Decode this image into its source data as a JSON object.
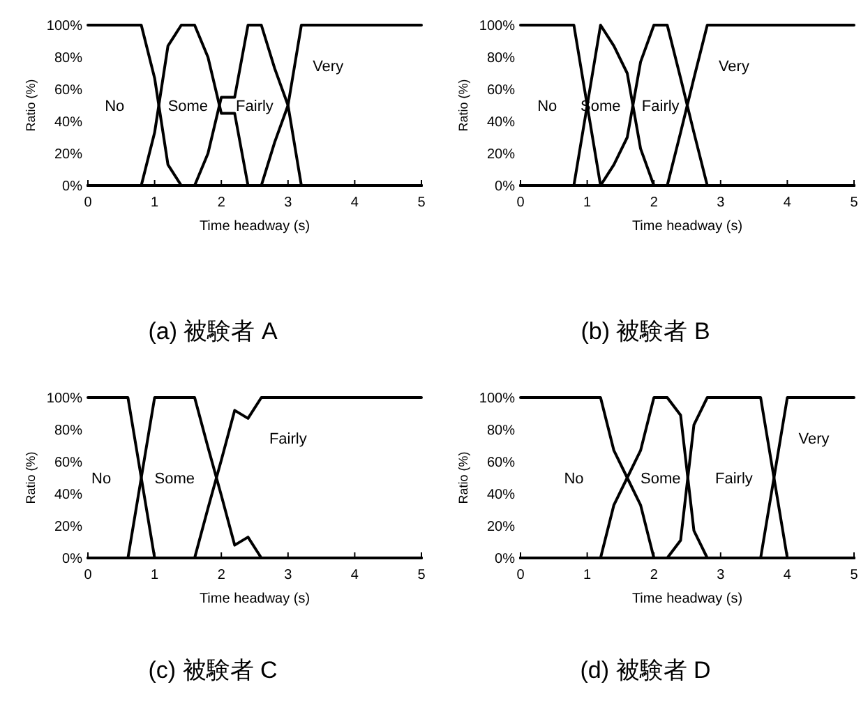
{
  "chart_data": [
    {
      "type": "line",
      "title": "(a) 被験者 A",
      "xlabel": "Time headway (s)",
      "ylabel": "Ratio (%)",
      "xlim": [
        0,
        5
      ],
      "xticks": [
        0,
        1,
        2,
        3,
        4,
        5
      ],
      "ylim": [
        0,
        100
      ],
      "yticks": [
        {
          "value": 0,
          "label": "0%"
        },
        {
          "value": 20,
          "label": "20%"
        },
        {
          "value": 40,
          "label": "40%"
        },
        {
          "value": 60,
          "label": "60%"
        },
        {
          "value": 80,
          "label": "80%"
        },
        {
          "value": 100,
          "label": "100%"
        }
      ],
      "x": [
        0,
        0.2,
        0.4,
        0.6,
        0.8,
        1.0,
        1.2,
        1.4,
        1.6,
        1.8,
        2.0,
        2.2,
        2.4,
        2.6,
        2.8,
        3.0,
        3.2,
        3.4,
        3.6,
        3.8,
        4.0,
        4.2,
        4.4,
        4.6,
        4.8,
        5.0
      ],
      "series": [
        {
          "name": "No",
          "color": "#000000",
          "values": [
            100,
            100,
            100,
            100,
            100,
            67,
            13,
            0,
            0,
            0,
            0,
            0,
            0,
            0,
            0,
            0,
            0,
            0,
            0,
            0,
            0,
            0,
            0,
            0,
            0,
            0
          ]
        },
        {
          "name": "Some",
          "color": "#000000",
          "values": [
            0,
            0,
            0,
            0,
            0,
            33,
            87,
            100,
            100,
            80,
            45,
            45,
            0,
            0,
            0,
            0,
            0,
            0,
            0,
            0,
            0,
            0,
            0,
            0,
            0,
            0
          ]
        },
        {
          "name": "Fairly",
          "color": "#000000",
          "values": [
            0,
            0,
            0,
            0,
            0,
            0,
            0,
            0,
            0,
            20,
            55,
            55,
            100,
            100,
            73,
            50,
            0,
            0,
            0,
            0,
            0,
            0,
            0,
            0,
            0,
            0
          ]
        },
        {
          "name": "Very",
          "color": "#000000",
          "values": [
            0,
            0,
            0,
            0,
            0,
            0,
            0,
            0,
            0,
            0,
            0,
            0,
            0,
            0,
            27,
            50,
            100,
            100,
            100,
            100,
            100,
            100,
            100,
            100,
            100,
            100
          ]
        }
      ]
    },
    {
      "type": "line",
      "title": "(b) 被験者 B",
      "xlabel": "Time headway (s)",
      "ylabel": "Ratio (%)",
      "xlim": [
        0,
        5
      ],
      "xticks": [
        0,
        1,
        2,
        3,
        4,
        5
      ],
      "ylim": [
        0,
        100
      ],
      "yticks": [
        {
          "value": 0,
          "label": "0%"
        },
        {
          "value": 20,
          "label": "20%"
        },
        {
          "value": 40,
          "label": "40%"
        },
        {
          "value": 60,
          "label": "60%"
        },
        {
          "value": 80,
          "label": "80%"
        },
        {
          "value": 100,
          "label": "100%"
        }
      ],
      "x": [
        0,
        0.2,
        0.4,
        0.6,
        0.8,
        1.0,
        1.2,
        1.4,
        1.6,
        1.8,
        2.0,
        2.2,
        2.4,
        2.6,
        2.8,
        3.0,
        3.2,
        3.4,
        3.6,
        3.8,
        4.0,
        4.2,
        4.4,
        4.6,
        4.8,
        5.0
      ],
      "series": [
        {
          "name": "No",
          "color": "#000000",
          "values": [
            100,
            100,
            100,
            100,
            100,
            50,
            0,
            0,
            0,
            0,
            0,
            0,
            0,
            0,
            0,
            0,
            0,
            0,
            0,
            0,
            0,
            0,
            0,
            0,
            0,
            0
          ]
        },
        {
          "name": "Some",
          "color": "#000000",
          "values": [
            0,
            0,
            0,
            0,
            0,
            50,
            100,
            87,
            70,
            23,
            0,
            0,
            0,
            0,
            0,
            0,
            0,
            0,
            0,
            0,
            0,
            0,
            0,
            0,
            0,
            0
          ]
        },
        {
          "name": "Fairly",
          "color": "#000000",
          "values": [
            0,
            0,
            0,
            0,
            0,
            0,
            0,
            13,
            30,
            77,
            100,
            100,
            67,
            33,
            0,
            0,
            0,
            0,
            0,
            0,
            0,
            0,
            0,
            0,
            0,
            0
          ]
        },
        {
          "name": "Very",
          "color": "#000000",
          "values": [
            0,
            0,
            0,
            0,
            0,
            0,
            0,
            0,
            0,
            0,
            0,
            0,
            33,
            67,
            100,
            100,
            100,
            100,
            100,
            100,
            100,
            100,
            100,
            100,
            100,
            100
          ]
        }
      ]
    },
    {
      "type": "line",
      "title": "(c) 被験者 C",
      "xlabel": "Time headway (s)",
      "ylabel": "Ratio (%)",
      "xlim": [
        0,
        5
      ],
      "xticks": [
        0,
        1,
        2,
        3,
        4,
        5
      ],
      "ylim": [
        0,
        100
      ],
      "yticks": [
        {
          "value": 0,
          "label": "0%"
        },
        {
          "value": 20,
          "label": "20%"
        },
        {
          "value": 40,
          "label": "40%"
        },
        {
          "value": 60,
          "label": "60%"
        },
        {
          "value": 80,
          "label": "80%"
        },
        {
          "value": 100,
          "label": "100%"
        }
      ],
      "x": [
        0,
        0.2,
        0.4,
        0.6,
        0.8,
        1.0,
        1.2,
        1.4,
        1.6,
        1.8,
        2.0,
        2.2,
        2.4,
        2.6,
        2.8,
        3.0,
        3.2,
        3.4,
        3.6,
        3.8,
        4.0,
        4.2,
        4.4,
        4.6,
        4.8,
        5.0
      ],
      "series": [
        {
          "name": "No",
          "color": "#000000",
          "values": [
            100,
            100,
            100,
            100,
            50,
            0,
            0,
            0,
            0,
            0,
            0,
            0,
            0,
            0,
            0,
            0,
            0,
            0,
            0,
            0,
            0,
            0,
            0,
            0,
            0,
            0
          ]
        },
        {
          "name": "Some",
          "color": "#000000",
          "values": [
            0,
            0,
            0,
            0,
            50,
            100,
            100,
            100,
            100,
            69,
            39,
            8,
            13,
            0,
            0,
            0,
            0,
            0,
            0,
            0,
            0,
            0,
            0,
            0,
            0,
            0
          ]
        },
        {
          "name": "Fairly",
          "color": "#000000",
          "values": [
            0,
            0,
            0,
            0,
            0,
            0,
            0,
            0,
            0,
            31,
            61,
            92,
            87,
            100,
            100,
            100,
            100,
            100,
            100,
            100,
            100,
            100,
            100,
            100,
            100,
            100
          ]
        }
      ]
    },
    {
      "type": "line",
      "title": "(d) 被験者 D",
      "xlabel": "Time headway (s)",
      "ylabel": "Ratio (%)",
      "xlim": [
        0,
        5
      ],
      "xticks": [
        0,
        1,
        2,
        3,
        4,
        5
      ],
      "ylim": [
        0,
        100
      ],
      "yticks": [
        {
          "value": 0,
          "label": "0%"
        },
        {
          "value": 20,
          "label": "20%"
        },
        {
          "value": 40,
          "label": "40%"
        },
        {
          "value": 60,
          "label": "60%"
        },
        {
          "value": 80,
          "label": "80%"
        },
        {
          "value": 100,
          "label": "100%"
        }
      ],
      "x": [
        0,
        0.2,
        0.4,
        0.6,
        0.8,
        1.0,
        1.2,
        1.4,
        1.6,
        1.8,
        2.0,
        2.2,
        2.4,
        2.6,
        2.8,
        3.0,
        3.2,
        3.4,
        3.6,
        3.8,
        4.0,
        4.2,
        4.4,
        4.6,
        4.8,
        5.0
      ],
      "series": [
        {
          "name": "No",
          "color": "#000000",
          "values": [
            100,
            100,
            100,
            100,
            100,
            100,
            100,
            67,
            50,
            33,
            0,
            0,
            0,
            0,
            0,
            0,
            0,
            0,
            0,
            0,
            0,
            0,
            0,
            0,
            0,
            0
          ]
        },
        {
          "name": "Some",
          "color": "#000000",
          "values": [
            0,
            0,
            0,
            0,
            0,
            0,
            0,
            33,
            50,
            67,
            100,
            100,
            89,
            17,
            0,
            0,
            0,
            0,
            0,
            0,
            0,
            0,
            0,
            0,
            0,
            0
          ]
        },
        {
          "name": "Fairly",
          "color": "#000000",
          "values": [
            0,
            0,
            0,
            0,
            0,
            0,
            0,
            0,
            0,
            0,
            0,
            0,
            11,
            83,
            100,
            100,
            100,
            100,
            100,
            50,
            0,
            0,
            0,
            0,
            0,
            0
          ]
        },
        {
          "name": "Very",
          "color": "#000000",
          "values": [
            0,
            0,
            0,
            0,
            0,
            0,
            0,
            0,
            0,
            0,
            0,
            0,
            0,
            0,
            0,
            0,
            0,
            0,
            0,
            50,
            100,
            100,
            100,
            100,
            100,
            100
          ]
        }
      ]
    }
  ]
}
